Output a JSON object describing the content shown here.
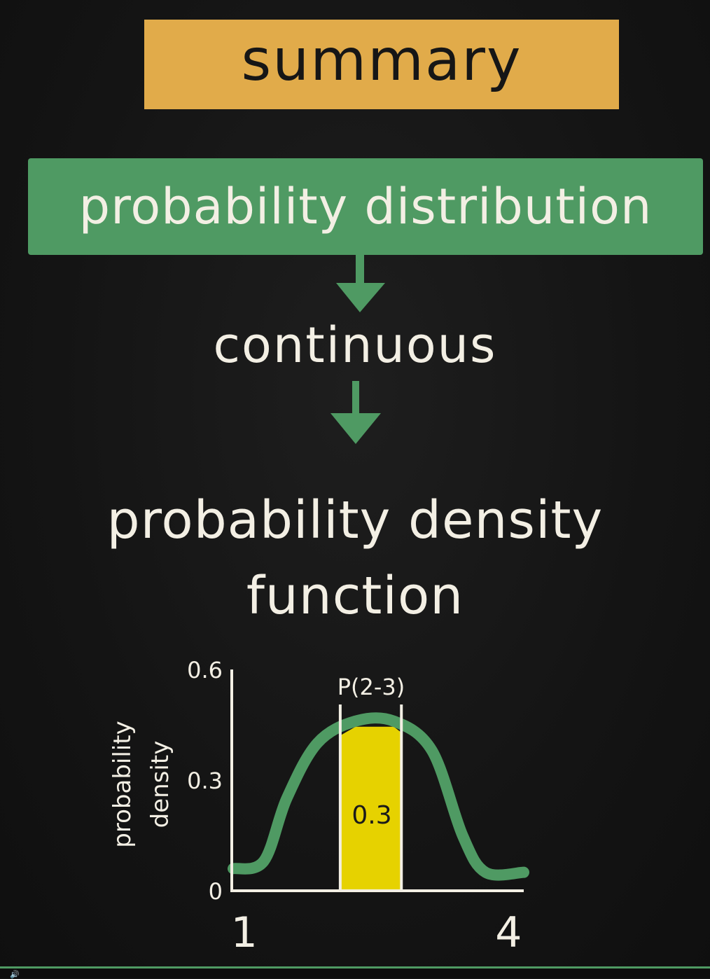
{
  "title": "summary",
  "box_label": "probability distribution",
  "step1": "continuous",
  "step2_line1": "probability density",
  "step2_line2": "function",
  "colors": {
    "background": "#151515",
    "title_box": "#e1ab4a",
    "green": "#4f9a63",
    "highlight": "#e6d200",
    "chalk": "#f3efe4"
  },
  "icons": {
    "arrow1": "arrow-down-icon",
    "arrow2": "arrow-down-icon",
    "player_volume": "volume-icon"
  },
  "chart_data": {
    "type": "line",
    "ylabel_line1": "probability",
    "ylabel_line2": "density",
    "y_ticks": [
      "0",
      "0.3",
      "0.6"
    ],
    "x_ticks": [
      "1",
      "4"
    ],
    "ylim": [
      0,
      0.6
    ],
    "xlim": [
      0.6,
      4.4
    ],
    "curve": [
      {
        "x": 0.6,
        "y": 0.06
      },
      {
        "x": 1.0,
        "y": 0.08
      },
      {
        "x": 1.3,
        "y": 0.25
      },
      {
        "x": 1.7,
        "y": 0.4
      },
      {
        "x": 2.2,
        "y": 0.46
      },
      {
        "x": 2.7,
        "y": 0.46
      },
      {
        "x": 3.2,
        "y": 0.38
      },
      {
        "x": 3.6,
        "y": 0.15
      },
      {
        "x": 3.9,
        "y": 0.05
      },
      {
        "x": 4.4,
        "y": 0.05
      }
    ],
    "shaded_interval": [
      2.0,
      2.8
    ],
    "interval_label": "P(2-3)",
    "area_label": "0.3"
  }
}
